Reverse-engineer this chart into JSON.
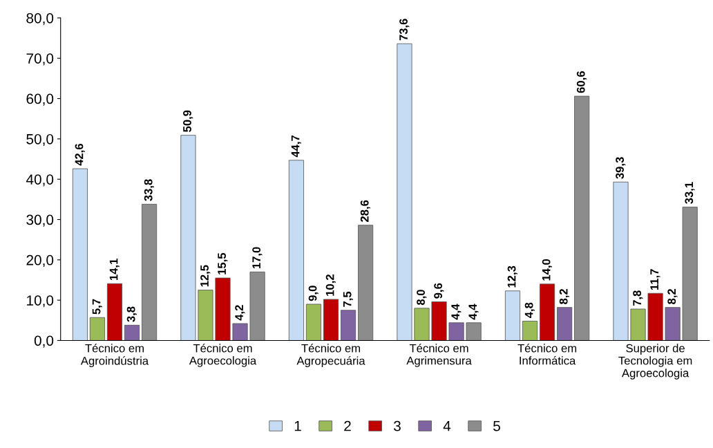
{
  "chart_data": {
    "type": "bar",
    "categories": [
      "Técnico em\nAgroindústria",
      "Técnico em\nAgroecologia",
      "Técnico em\nAgropecuária",
      "Técnico em\nAgrimensura",
      "Técnico em\nInformática",
      "Superior de\nTecnologia em\nAgroecologia"
    ],
    "series": [
      {
        "name": "1",
        "color": "#c6dcf4",
        "values": [
          42.6,
          50.9,
          44.7,
          73.6,
          12.3,
          39.3
        ],
        "value_labels": [
          "42,6",
          "50,9",
          "44,7",
          "73,6",
          "12,3",
          "39,3"
        ]
      },
      {
        "name": "2",
        "color": "#9bbb59",
        "values": [
          5.7,
          12.5,
          9.0,
          8.0,
          4.8,
          7.8
        ],
        "value_labels": [
          "5,7",
          "12,5",
          "9,0",
          "8,0",
          "4,8",
          "7,8"
        ]
      },
      {
        "name": "3",
        "color": "#c00000",
        "values": [
          14.1,
          15.5,
          10.2,
          9.6,
          14.0,
          11.7
        ],
        "value_labels": [
          "14,1",
          "15,5",
          "10,2",
          "9,6",
          "14,0",
          "11,7"
        ]
      },
      {
        "name": "4",
        "color": "#8064a2",
        "values": [
          3.8,
          4.2,
          7.5,
          4.4,
          8.2,
          8.2
        ],
        "value_labels": [
          "3,8",
          "4,2",
          "7,5",
          "4,4",
          "8,2",
          "8,2"
        ]
      },
      {
        "name": "5",
        "color": "#8c8c8c",
        "values": [
          33.8,
          17.0,
          28.6,
          4.4,
          60.6,
          33.1
        ],
        "value_labels": [
          "33,8",
          "17,0",
          "28,6",
          "4,4",
          "60,6",
          "33,1"
        ]
      }
    ],
    "ylim": [
      0,
      80
    ],
    "yticks": [
      {
        "value": 0,
        "label": "0,0"
      },
      {
        "value": 10,
        "label": "10,0"
      },
      {
        "value": 20,
        "label": "20,0"
      },
      {
        "value": 30,
        "label": "30,0"
      },
      {
        "value": 40,
        "label": "40,0"
      },
      {
        "value": 50,
        "label": "50,0"
      },
      {
        "value": 60,
        "label": "60,0"
      },
      {
        "value": 70,
        "label": "70,0"
      },
      {
        "value": 80,
        "label": "80,0"
      }
    ],
    "grid": false,
    "legend": "bottom"
  }
}
